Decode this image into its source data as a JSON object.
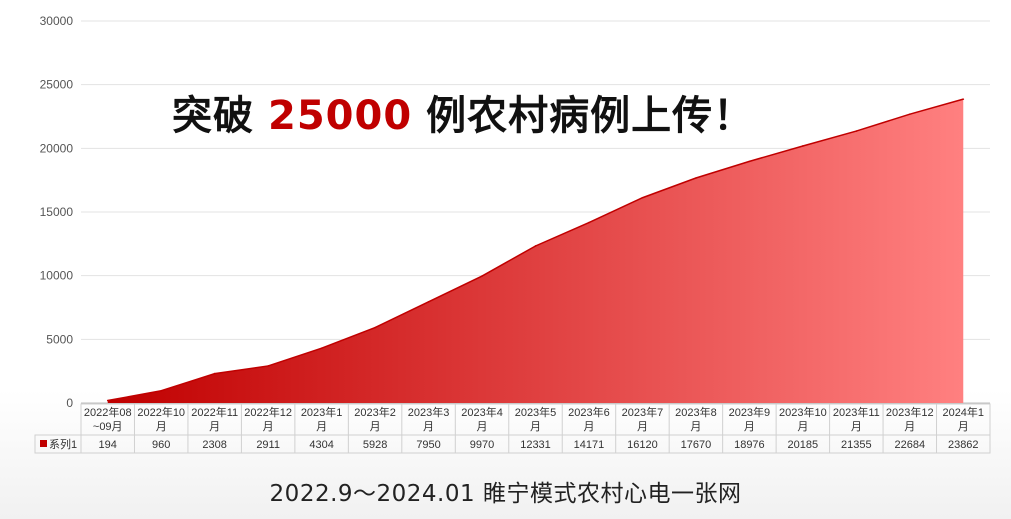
{
  "headline": {
    "prefix": "突破",
    "number": "25000",
    "suffix": "例农村病例上传！"
  },
  "caption": "2022.9～2024.01 睢宁模式农村心电一张网",
  "colors": {
    "fill_start": "#c00000",
    "fill_end": "#ff8080",
    "line": "#c00000",
    "number_accent": "#c00000"
  },
  "chart_data": {
    "type": "area",
    "categories": [
      [
        "2022年08",
        "~09月"
      ],
      [
        "2022年10",
        "月"
      ],
      [
        "2022年11",
        "月"
      ],
      [
        "2022年12",
        "月"
      ],
      [
        "2023年1",
        "月"
      ],
      [
        "2023年2",
        "月"
      ],
      [
        "2023年3",
        "月"
      ],
      [
        "2023年4",
        "月"
      ],
      [
        "2023年5",
        "月"
      ],
      [
        "2023年6",
        "月"
      ],
      [
        "2023年7",
        "月"
      ],
      [
        "2023年8",
        "月"
      ],
      [
        "2023年9",
        "月"
      ],
      [
        "2023年10",
        "月"
      ],
      [
        "2023年11",
        "月"
      ],
      [
        "2023年12",
        "月"
      ],
      [
        "2024年1",
        "月"
      ]
    ],
    "series": [
      {
        "name": "系列1",
        "values": [
          194,
          960,
          2308,
          2911,
          4304,
          5928,
          7950,
          9970,
          12331,
          14171,
          16120,
          17670,
          18976,
          20185,
          21355,
          22684,
          23862
        ]
      }
    ],
    "ylim": [
      0,
      30000
    ],
    "yticks": [
      0,
      5000,
      10000,
      15000,
      20000,
      25000,
      30000
    ],
    "grid": true,
    "data_table": true
  }
}
